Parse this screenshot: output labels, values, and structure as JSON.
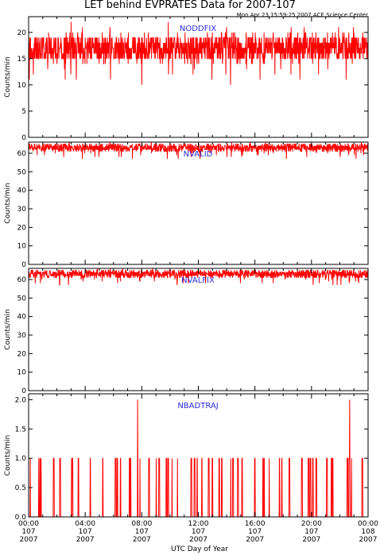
{
  "chart_data": {
    "type": "line",
    "title": "LET behind EVPRATES Data for 2007-107",
    "stamp": "Mon Apr 23 15:59:25 2007 ACE Science Center",
    "xlabel": "UTC Day of Year",
    "x_ticks": [
      {
        "hour": 0,
        "time": "00:00",
        "doy": "107",
        "year": "2007"
      },
      {
        "hour": 4,
        "time": "04:00",
        "doy": "107",
        "year": "2007"
      },
      {
        "hour": 8,
        "time": "08:00",
        "doy": "107",
        "year": "2007"
      },
      {
        "hour": 12,
        "time": "12:00",
        "doy": "107",
        "year": "2007"
      },
      {
        "hour": 16,
        "time": "16:00",
        "doy": "107",
        "year": "2007"
      },
      {
        "hour": 20,
        "time": "20:00",
        "doy": "107",
        "year": "2007"
      },
      {
        "hour": 24,
        "time": "00:00",
        "doy": "108",
        "year": "2007"
      }
    ],
    "xlim_hours": [
      0,
      24
    ],
    "line_color": "#ff0000",
    "label_color": "#2a2ad6",
    "panels": [
      {
        "name": "NODDFIX",
        "ylabel": "Counts/min",
        "ylim": [
          0,
          23
        ],
        "yticks": [
          "0",
          "5",
          "10",
          "15",
          "20"
        ],
        "ytick_values": [
          0,
          5,
          10,
          15,
          20
        ],
        "typical_value": 17,
        "range": [
          10,
          22
        ]
      },
      {
        "name": "NVALID",
        "ylabel": "Counts/min",
        "ylim": [
          0,
          66
        ],
        "yticks": [
          "0",
          "10",
          "20",
          "30",
          "40",
          "50",
          "60"
        ],
        "ytick_values": [
          0,
          10,
          20,
          30,
          40,
          50,
          60
        ],
        "typical_value": 63,
        "range": [
          57,
          66
        ]
      },
      {
        "name": "NVALFIX",
        "ylabel": "Counts/min",
        "ylim": [
          0,
          66
        ],
        "yticks": [
          "0",
          "10",
          "20",
          "30",
          "40",
          "50",
          "60"
        ],
        "ytick_values": [
          0,
          10,
          20,
          30,
          40,
          50,
          60
        ],
        "typical_value": 63,
        "range": [
          57,
          66
        ]
      },
      {
        "name": "NBADTRAJ",
        "ylabel": "Counts/min",
        "ylim": [
          0,
          2.1
        ],
        "yticks": [
          "0.0",
          "0.5",
          "1.0",
          "1.5",
          "2.0"
        ],
        "ytick_values": [
          0,
          0.5,
          1.0,
          1.5,
          2.0
        ],
        "typical_value": 0,
        "range": [
          0,
          2
        ],
        "spikes_to_2_at_hours": [
          7.7,
          22.7
        ]
      }
    ]
  }
}
